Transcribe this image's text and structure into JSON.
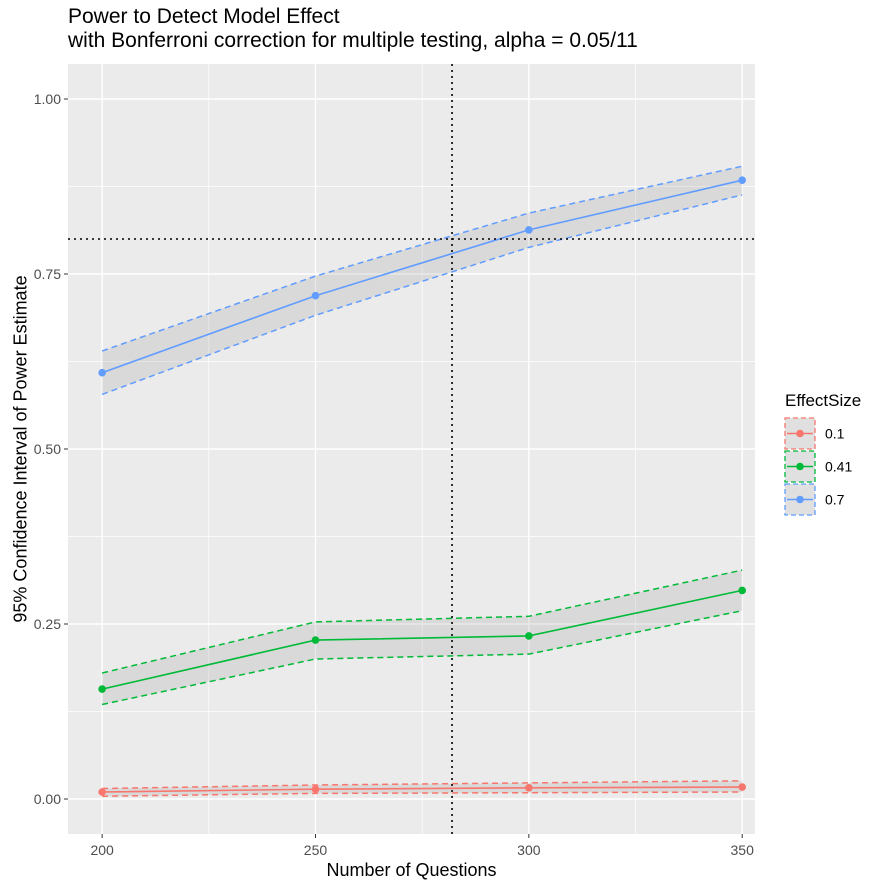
{
  "chart_data": {
    "type": "line",
    "title": "Power to Detect Model Effect",
    "subtitle": "with Bonferroni correction for multiple testing, alpha = 0.05/11",
    "xlabel": "Number of Questions",
    "ylabel": "95% Confidence Interval of Power Estimate",
    "x": [
      200,
      250,
      300,
      350
    ],
    "xlim": [
      192,
      353
    ],
    "ylim": [
      -0.05,
      1.05
    ],
    "x_ticks": [
      200,
      250,
      300,
      350
    ],
    "x_tick_labels": [
      "200",
      "250",
      "300",
      "350"
    ],
    "y_ticks": [
      0,
      0.25,
      0.5,
      0.75,
      1
    ],
    "y_tick_labels": [
      "0.00",
      "0.25",
      "0.50",
      "0.75",
      "1.00"
    ],
    "grid": true,
    "reference_lines": {
      "vertical_x": 282,
      "horizontal_y": 0.8
    },
    "legend": {
      "title": "EffectSize",
      "position": "right"
    },
    "series": [
      {
        "name": "0.1",
        "color": "#F8766D",
        "values": [
          0.01,
          0.014,
          0.016,
          0.017
        ],
        "lower": [
          0.004,
          0.008,
          0.009,
          0.01
        ],
        "upper": [
          0.015,
          0.02,
          0.023,
          0.026
        ]
      },
      {
        "name": "0.41",
        "color": "#00BA38",
        "values": [
          0.157,
          0.227,
          0.233,
          0.298
        ],
        "lower": [
          0.135,
          0.2,
          0.207,
          0.269
        ],
        "upper": [
          0.18,
          0.253,
          0.261,
          0.327
        ]
      },
      {
        "name": "0.7",
        "color": "#619CFF",
        "values": [
          0.609,
          0.719,
          0.813,
          0.884
        ],
        "lower": [
          0.578,
          0.691,
          0.788,
          0.863
        ],
        "upper": [
          0.64,
          0.747,
          0.837,
          0.904
        ]
      }
    ]
  }
}
